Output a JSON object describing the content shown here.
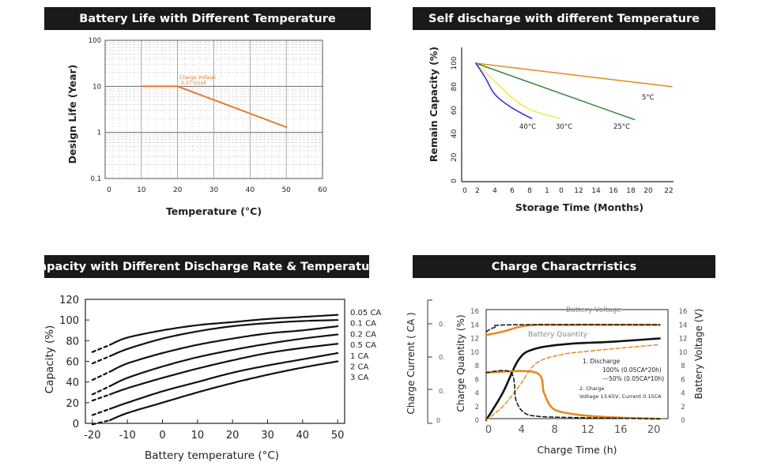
{
  "chart_data": [
    {
      "type": "line",
      "title": "Battery Life with Different Temperature",
      "xlabel": "Temperature (°C)",
      "ylabel": "Design Life (Year)",
      "xscale": "linear",
      "yscale": "log",
      "xlim": [
        0,
        60
      ],
      "ylim": [
        0.1,
        100
      ],
      "x_ticks": [
        "0",
        "10",
        "20",
        "30",
        "40",
        "50",
        "60"
      ],
      "y_ticks": [
        "0.1",
        "1",
        "10",
        "100"
      ],
      "grid": true,
      "annotation": [
        "Charge Voltage",
        "2.27 V/cell"
      ],
      "series": [
        {
          "name": "Charge Voltage 2.27 V/cell",
          "color": "#e07b2a",
          "x": [
            10,
            20,
            50
          ],
          "y": [
            10,
            10,
            1.3
          ]
        }
      ]
    },
    {
      "type": "line",
      "title": "Self discharge with different Temperature",
      "xlabel": "Storage Time (Months)",
      "ylabel": "Remain Capacity (%)",
      "xlim": [
        0,
        22
      ],
      "ylim": [
        0,
        100
      ],
      "x_ticks": [
        "0",
        "2",
        "4",
        "6",
        "8",
        "1",
        "0",
        "12",
        "14",
        "16",
        "18",
        "20",
        "22"
      ],
      "y_ticks": [
        "0",
        "20",
        "40",
        "60",
        "80",
        "100"
      ],
      "grid": false,
      "series": [
        {
          "name": "5°C",
          "label": "5°C",
          "color": "#e38b1e",
          "x": [
            1,
            22
          ],
          "y": [
            100,
            80
          ]
        },
        {
          "name": "25°C",
          "label": "25°C",
          "color": "#2e8b3a",
          "x": [
            1,
            18
          ],
          "y": [
            100,
            52
          ]
        },
        {
          "name": "30°C",
          "label": "30°C",
          "color": "#f2e64a",
          "x": [
            1,
            3,
            5,
            7,
            10
          ],
          "y": [
            100,
            85,
            70,
            60,
            53
          ]
        },
        {
          "name": "40°C",
          "label": "40°C",
          "color": "#2a2ad0",
          "x": [
            1,
            2,
            3,
            4.5,
            6,
            7
          ],
          "y": [
            100,
            88,
            74,
            64,
            57,
            53
          ]
        }
      ]
    },
    {
      "type": "line",
      "title": "Capacity with Different Discharge Rate & Temperature",
      "xlabel": "Battery temperature (°C)",
      "ylabel": "Capacity (%)",
      "xlim": [
        -20,
        50
      ],
      "ylim": [
        0,
        120
      ],
      "x_ticks": [
        "-20",
        "-10",
        "0",
        "10",
        "20",
        "30",
        "40",
        "50"
      ],
      "y_ticks": [
        "0",
        "20",
        "40",
        "60",
        "80",
        "100",
        "120"
      ],
      "grid": false,
      "legend": [
        "0.05 CA",
        "0.1 CA",
        "0.2 CA",
        "0.5 CA",
        "1 CA",
        "2 CA",
        "3 CA"
      ],
      "series": [
        {
          "name": "0.05 CA",
          "x": [
            -15,
            -10,
            0,
            10,
            20,
            30,
            40,
            50
          ],
          "y": [
            76,
            83,
            90,
            95,
            98,
            101,
            103,
            105
          ]
        },
        {
          "name": "0.1 CA",
          "x": [
            -15,
            -10,
            0,
            10,
            20,
            30,
            40,
            50
          ],
          "y": [
            65,
            72,
            82,
            89,
            94,
            97,
            99,
            100
          ]
        },
        {
          "name": "0.2 CA",
          "x": [
            -15,
            -10,
            0,
            10,
            20,
            30,
            40,
            50
          ],
          "y": [
            50,
            58,
            68,
            76,
            82,
            87,
            90,
            94
          ]
        },
        {
          "name": "0.5 CA",
          "x": [
            -15,
            -10,
            0,
            10,
            20,
            30,
            40,
            50
          ],
          "y": [
            36,
            44,
            55,
            64,
            71,
            77,
            82,
            86
          ]
        },
        {
          "name": "1 CA",
          "x": [
            -15,
            -10,
            0,
            10,
            20,
            30,
            40,
            50
          ],
          "y": [
            28,
            34,
            44,
            53,
            61,
            68,
            73,
            77
          ]
        },
        {
          "name": "2 CA",
          "x": [
            -15,
            -10,
            0,
            10,
            20,
            30,
            40,
            50
          ],
          "y": [
            14,
            20,
            31,
            40,
            49,
            56,
            62,
            68
          ]
        },
        {
          "name": "3 CA",
          "x": [
            -15,
            -10,
            0,
            10,
            20,
            30,
            40,
            50
          ],
          "y": [
            3,
            10,
            20,
            30,
            39,
            47,
            54,
            60
          ]
        }
      ],
      "dashed_segment_x": [
        -20,
        -15
      ]
    },
    {
      "type": "line",
      "title": "Charge Charactrristics",
      "xlabel": "Charge Time (h)",
      "ylabels": [
        "Charge Current ( CA )",
        "Charge Quantity (%)",
        "Battery Voltage (V)"
      ],
      "xlim": [
        0,
        22
      ],
      "x_ticks": [
        "0",
        "4",
        "8",
        "12",
        "16",
        "20"
      ],
      "quantity_ticks": [
        "0",
        "2",
        "4",
        "6",
        "8",
        "10",
        "12",
        "14",
        "16"
      ],
      "voltage_ticks": [
        "0",
        "2",
        "4",
        "6",
        "8",
        "10",
        "12",
        "14",
        "16"
      ],
      "current_ticks": [
        "0",
        "0.",
        "0.",
        "0.",
        "0."
      ],
      "annotations": {
        "battery_voltage": "Battery Voltage",
        "battery_quantity": "Battery Quantity",
        "note_line1": "1. Discharge",
        "note_line2": "100% (0.05CA*20h)",
        "note_line3": "---50% (0.05CA*10h)",
        "note_line4": "2. Charge",
        "note_line5": "Voltage 13.65V, Current 0.15CA"
      },
      "series": [
        {
          "name": "Battery Voltage (100%)",
          "style": "solid-orange",
          "x": [
            0,
            2,
            5,
            10,
            21
          ],
          "y": [
            12.5,
            13.0,
            13.9,
            14.0,
            14.0
          ]
        },
        {
          "name": "Battery Voltage (50%)",
          "style": "dashed-black",
          "x": [
            0,
            1,
            3,
            21
          ],
          "y": [
            13.0,
            13.6,
            14.0,
            14.0
          ]
        },
        {
          "name": "Battery Quantity (100%)",
          "style": "solid-black",
          "x": [
            0,
            2,
            4,
            6,
            10,
            15,
            21
          ],
          "y": [
            0,
            4,
            9,
            10.5,
            11.2,
            11.5,
            12.0
          ]
        },
        {
          "name": "Battery Quantity (50%)",
          "style": "dashed-orange",
          "x": [
            0,
            2,
            4,
            6,
            9,
            13,
            21
          ],
          "y": [
            0,
            2,
            5,
            8.3,
            9.6,
            10.2,
            11.1
          ]
        },
        {
          "name": "Charge Current (100%)",
          "style": "solid-orange",
          "x": [
            0,
            6,
            7,
            8,
            10,
            14,
            21
          ],
          "y": [
            7,
            7,
            4,
            1.8,
            1.0,
            0.5,
            0.2
          ]
        },
        {
          "name": "Charge Current (50%)",
          "style": "dashed-black",
          "x": [
            0,
            3,
            3.6,
            4.5,
            6,
            10,
            21
          ],
          "y": [
            7,
            7,
            3,
            1.2,
            0.6,
            0.4,
            0.2
          ]
        }
      ]
    }
  ]
}
